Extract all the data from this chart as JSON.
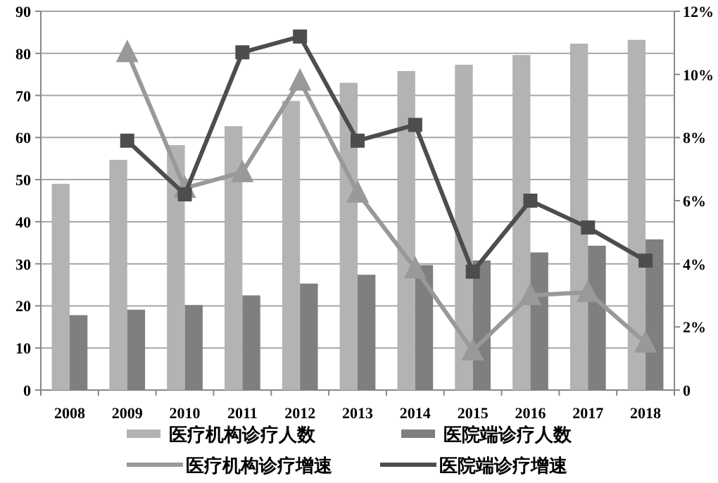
{
  "chart_data": {
    "type": "bar",
    "categories": [
      "2008",
      "2009",
      "2010",
      "2011",
      "2012",
      "2013",
      "2014",
      "2015",
      "2016",
      "2017",
      "2018"
    ],
    "series": [
      {
        "name": "医疗机构诊疗人数",
        "color": "#b3b3b3",
        "values": [
          49,
          54.7,
          58.2,
          62.7,
          68.7,
          73,
          75.8,
          77.3,
          79.6,
          82.3,
          83.2
        ]
      },
      {
        "name": "医院端诊疗人数",
        "color": "#7f7f7f",
        "values": [
          17.8,
          19.1,
          20.2,
          22.5,
          25.3,
          27.4,
          29.7,
          30.8,
          32.7,
          34.3,
          35.8
        ]
      },
      {
        "name": "医疗机构诊疗增速",
        "type": "line",
        "axis": "y2",
        "marker": "triangle",
        "color": "#999999",
        "values": [
          null,
          10.7,
          6.4,
          6.9,
          9.8,
          6.25,
          3.85,
          1.25,
          3.0,
          3.1,
          1.5
        ]
      },
      {
        "name": "医院端诊疗增速",
        "type": "line",
        "axis": "y2",
        "marker": "square",
        "color": "#4d4d4d",
        "values": [
          null,
          7.9,
          6.2,
          10.7,
          11.2,
          7.9,
          8.4,
          3.75,
          6.0,
          5.15,
          4.1
        ]
      }
    ],
    "ylim": [
      0,
      90
    ],
    "yticks": [
      0,
      10,
      20,
      30,
      40,
      50,
      60,
      70,
      80,
      90
    ],
    "y2lim": [
      0,
      12
    ],
    "y2ticks": [
      0,
      {
        "value": 2,
        "label": "2%"
      },
      {
        "value": 4,
        "label": "4%"
      },
      {
        "value": 6,
        "label": "6%"
      },
      {
        "value": 8,
        "label": "8%"
      },
      {
        "value": 10,
        "label": "10%"
      },
      {
        "value": 12,
        "label": "12%"
      }
    ],
    "grid": "y",
    "legend": "bottom"
  }
}
